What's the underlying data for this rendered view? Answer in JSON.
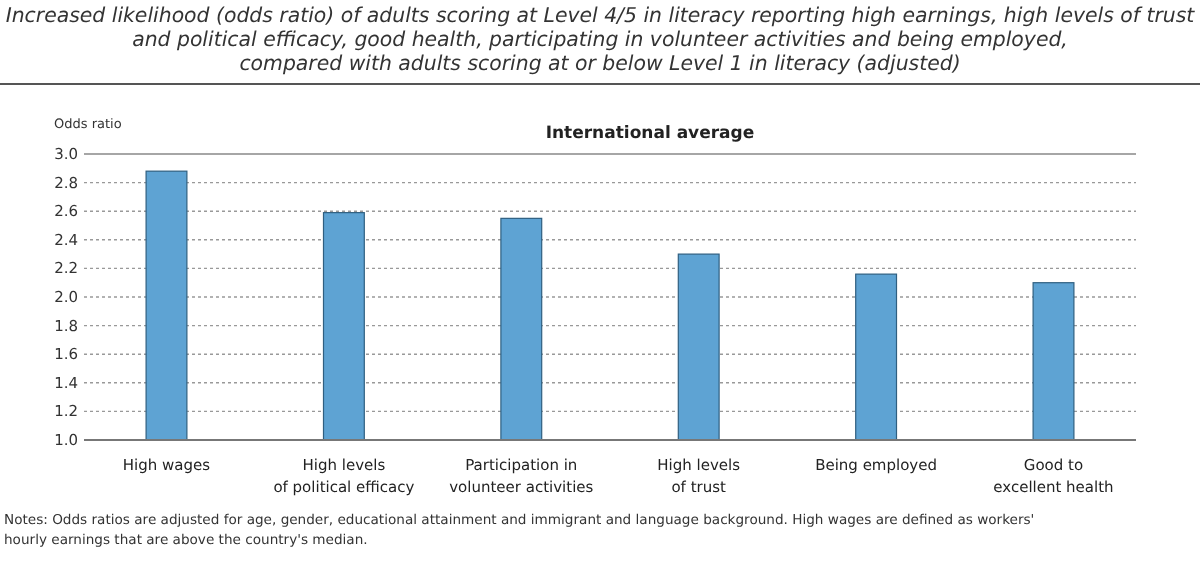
{
  "chart_data": {
    "type": "bar",
    "title": "Increased likelihood (odds ratio) of adults scoring at Level 4/5 in literacy reporting high earnings, high levels of trust\nand political efficacy, good health, participating in volunteer activities and being employed,\ncompared with adults scoring at or below Level 1 in literacy (adjusted)",
    "subtitle": "International average",
    "ylabel": "Odds ratio",
    "categories": [
      "High wages",
      "High levels\nof political efficacy",
      "Participation in\nvolunteer activities",
      "High levels\nof trust",
      "Being employed",
      "Good to\nexcellent health"
    ],
    "values": [
      2.88,
      2.59,
      2.55,
      2.3,
      2.16,
      2.1
    ],
    "color": "#5ea3d3",
    "ylim": [
      1.0,
      3.0
    ],
    "yticks": [
      {
        "value": 1,
        "label": "1.0"
      },
      {
        "value": 1.2,
        "label": "1.2"
      },
      {
        "value": 1.4,
        "label": "1.4"
      },
      {
        "value": 1.6,
        "label": "1.6"
      },
      {
        "value": 1.8,
        "label": "1.8"
      },
      {
        "value": 2,
        "label": "2.0"
      },
      {
        "value": 2.2,
        "label": "2.2"
      },
      {
        "value": 2.4,
        "label": "2.4"
      },
      {
        "value": 2.6,
        "label": "2.6"
      },
      {
        "value": 2.8,
        "label": "2.8"
      },
      {
        "value": 3,
        "label": "3.0"
      }
    ],
    "grid": "y",
    "annotations": [
      "Notes: Odds ratios are adjusted for age, gender, educational attainment and immigrant and language background. High wages are defined as workers'\nhourly earnings that are above the country's median."
    ]
  }
}
